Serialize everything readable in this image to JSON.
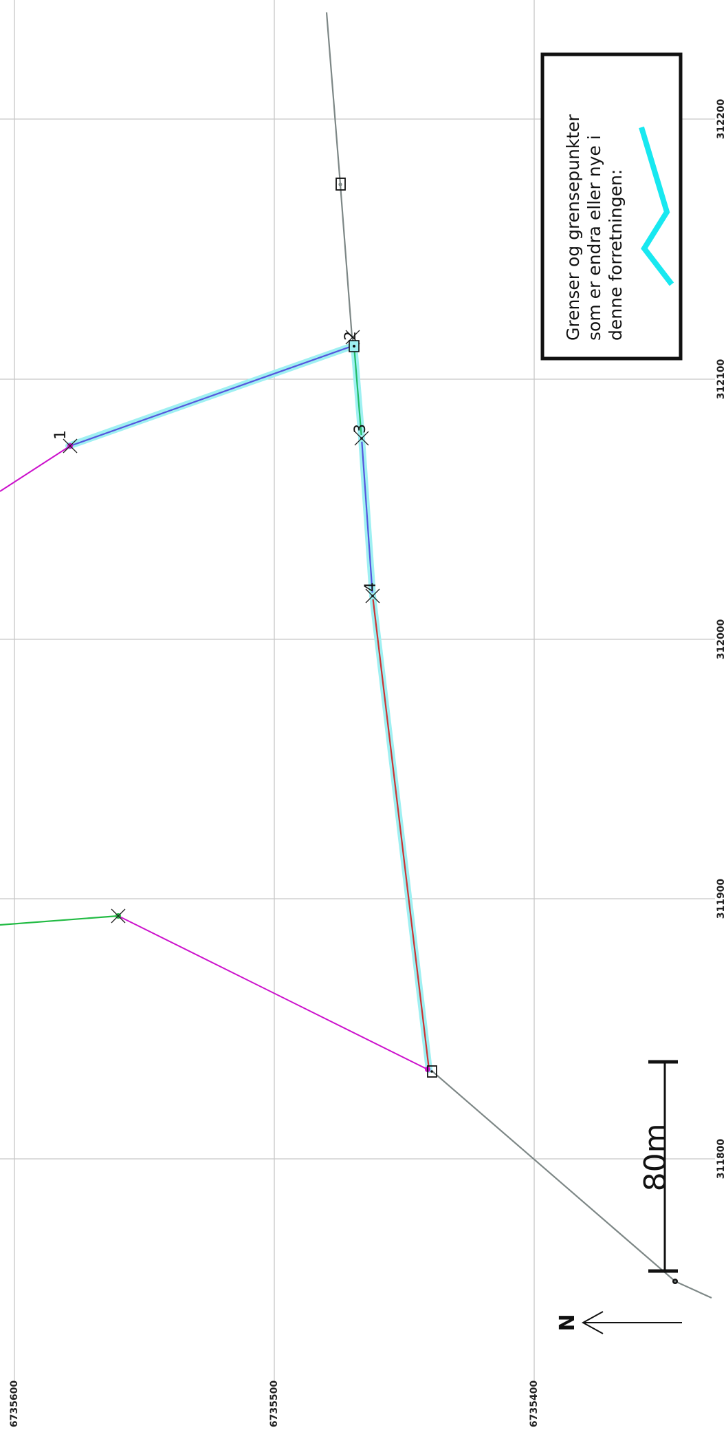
{
  "colors": {
    "grid": "#c6c6c6",
    "existing_boundary": "#7d8786",
    "magenta_boundary": "#cc11cc",
    "green_boundary": "#22bb44",
    "new_boundary_highlight": "#9ff0f2",
    "blue_boundary": "#5555dd",
    "red_boundary": "#cc3333",
    "legend_symbol": "#18e8f0"
  },
  "grid": {
    "easting_labels": [
      "312200",
      "312100",
      "312000",
      "311900",
      "311800"
    ],
    "northing_labels": [
      "6735600",
      "6735500",
      "6735400"
    ]
  },
  "legend": {
    "lines": [
      "Grenser og grensepunkter",
      "som er endra eller nye i",
      "denne forretningen:"
    ]
  },
  "point_labels": [
    "1",
    "2",
    "3",
    "4"
  ],
  "scale_bar": {
    "label": "80m",
    "length_m": 80
  },
  "north_arrow": {
    "label": "N"
  }
}
